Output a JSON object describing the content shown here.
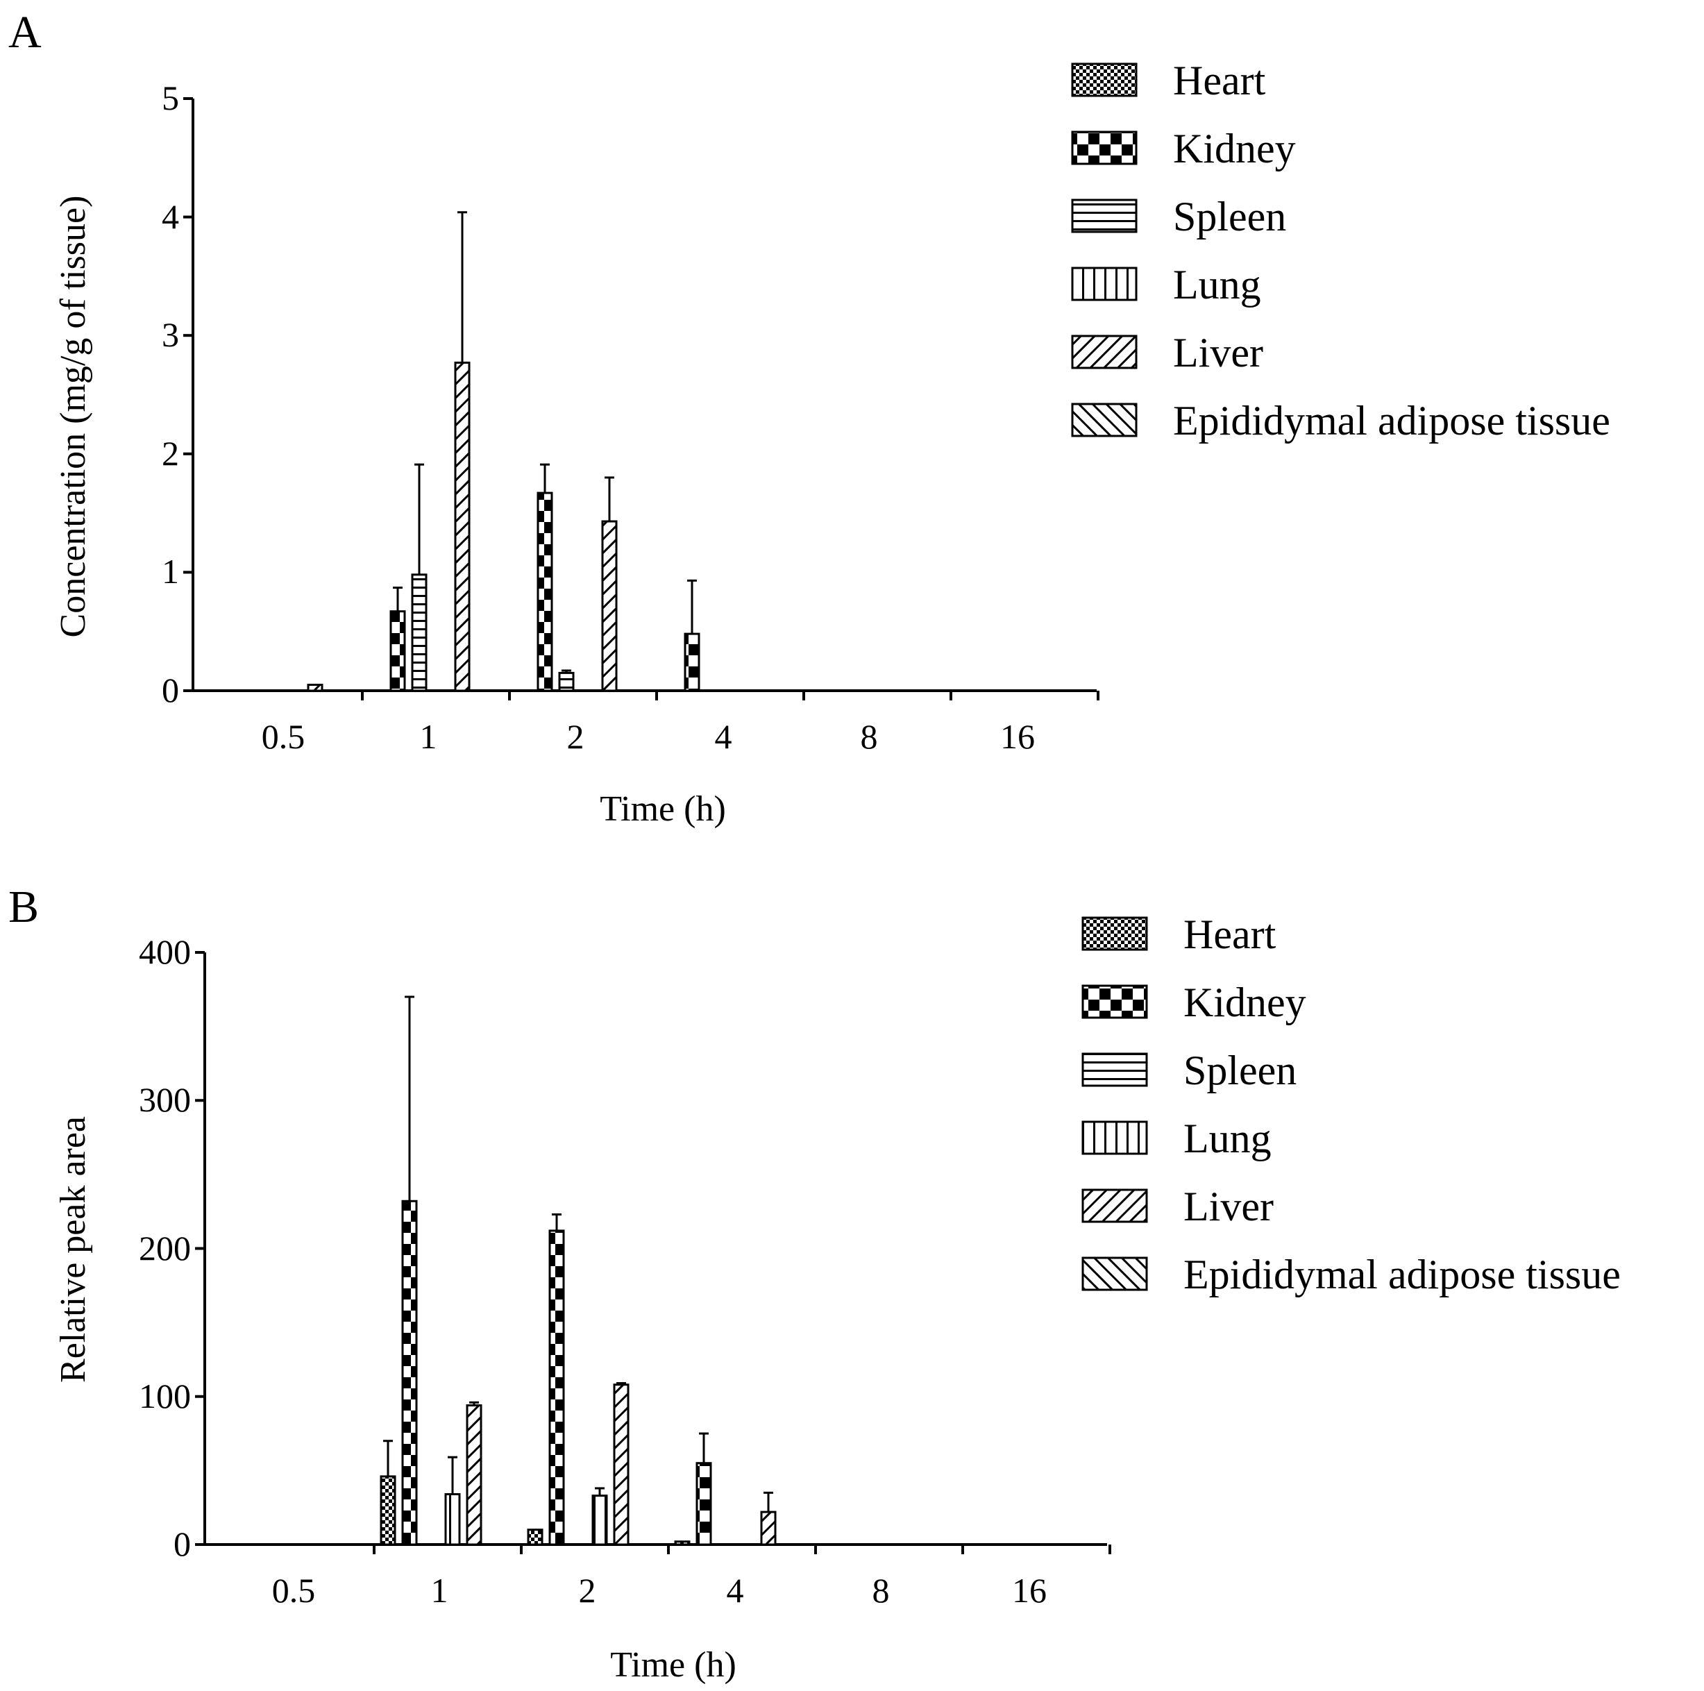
{
  "chart_data": [
    {
      "panel_label": "A",
      "type": "bar",
      "xlabel": "Time (h)",
      "ylabel": "Concentration (mg/g of tissue)",
      "ylim": [
        0,
        5
      ],
      "yticks": [
        "0",
        "1",
        "2",
        "3",
        "4",
        "5"
      ],
      "categories": [
        "0.5",
        "1",
        "2",
        "4",
        "8",
        "16"
      ],
      "legend": [
        "Heart",
        "Kidney",
        "Spleen",
        "Lung",
        "Liver",
        "Epididymal adipose tissue"
      ],
      "series": [
        {
          "name": "Heart",
          "pattern": "fine-check",
          "values": [
            0,
            0,
            0,
            0,
            0,
            0
          ],
          "errors": [
            0,
            0,
            0,
            0,
            0,
            0
          ]
        },
        {
          "name": "Kidney",
          "pattern": "checker",
          "values": [
            0,
            0.67,
            1.67,
            0.48,
            0,
            0
          ],
          "errors": [
            0,
            0.2,
            0.24,
            0.45,
            0,
            0
          ]
        },
        {
          "name": "Spleen",
          "pattern": "horizontal",
          "values": [
            0,
            0.98,
            0.15,
            0,
            0,
            0
          ],
          "errors": [
            0,
            0.93,
            0.02,
            0,
            0,
            0
          ]
        },
        {
          "name": "Lung",
          "pattern": "vertical",
          "values": [
            0,
            0,
            0,
            0,
            0,
            0
          ],
          "errors": [
            0,
            0,
            0,
            0,
            0,
            0
          ]
        },
        {
          "name": "Liver",
          "pattern": "diag-up",
          "values": [
            0.05,
            2.77,
            1.43,
            0,
            0,
            0
          ],
          "errors": [
            0,
            1.27,
            0.37,
            0,
            0,
            0
          ]
        },
        {
          "name": "Epididymal adipose tissue",
          "pattern": "diag-down",
          "values": [
            0,
            0,
            0,
            0,
            0,
            0
          ],
          "errors": [
            0,
            0,
            0,
            0,
            0,
            0
          ]
        }
      ]
    },
    {
      "panel_label": "B",
      "type": "bar",
      "xlabel": "Time (h)",
      "ylabel": "Relative peak area",
      "ylim": [
        0,
        400
      ],
      "yticks": [
        "0",
        "100",
        "200",
        "300",
        "400"
      ],
      "categories": [
        "0.5",
        "1",
        "2",
        "4",
        "8",
        "16"
      ],
      "legend": [
        "Heart",
        "Kidney",
        "Spleen",
        "Lung",
        "Liver",
        "Epididymal adipose tissue"
      ],
      "series": [
        {
          "name": "Heart",
          "pattern": "fine-check",
          "values": [
            0,
            46,
            10,
            2,
            0,
            0
          ],
          "errors": [
            0,
            24,
            0,
            0,
            0,
            0
          ]
        },
        {
          "name": "Kidney",
          "pattern": "checker",
          "values": [
            0,
            232,
            212,
            55,
            0,
            0
          ],
          "errors": [
            0,
            138,
            11,
            20,
            0,
            0
          ]
        },
        {
          "name": "Spleen",
          "pattern": "horizontal",
          "values": [
            0,
            0,
            0,
            0,
            0,
            0
          ],
          "errors": [
            0,
            0,
            0,
            0,
            0,
            0
          ]
        },
        {
          "name": "Lung",
          "pattern": "vertical",
          "values": [
            0,
            34,
            33,
            0,
            0,
            0
          ],
          "errors": [
            0,
            25,
            5,
            0,
            0,
            0
          ]
        },
        {
          "name": "Liver",
          "pattern": "diag-up",
          "values": [
            0,
            94,
            108,
            22,
            0,
            0
          ],
          "errors": [
            0,
            2,
            1,
            13,
            0,
            0
          ]
        },
        {
          "name": "Epididymal adipose tissue",
          "pattern": "diag-down",
          "values": [
            0,
            0,
            0,
            0,
            0,
            0
          ],
          "errors": [
            0,
            0,
            0,
            0,
            0,
            0
          ]
        }
      ]
    }
  ]
}
